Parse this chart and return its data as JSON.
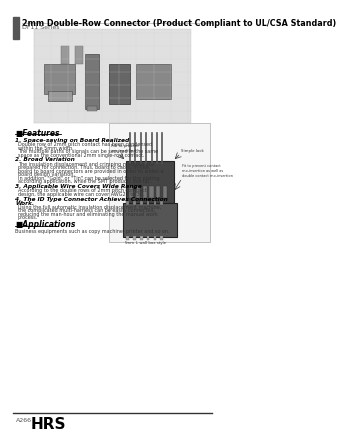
{
  "title": "2mm Double-Row Connector (Product Compliant to UL/CSA Standard)",
  "series": "DF11 Series",
  "features_title": "■Features",
  "features": [
    {
      "heading": "1. Space-saving on Board Realized",
      "text": "Double row of 2mm pitch contact has been condensed\nwithin the 5mm width.\nThe multiple paths of signals can be secured in the same\nspace as the conventional 2mm single-row contact."
    },
    {
      "heading": "2. Broad Variation",
      "text": "The insulation displacement and crimping methods are\nprepared for connection. Thus, board to cable, In-line,\nboard to board connectors are provided in order to widen a\nboard design variation.\nIn addition, \"Gold\" or \"Tin\" can be selected for the plating\naccording application, while the SMT products line up."
    },
    {
      "heading": "3. Applicable Wire Covers Wide Range",
      "text": "According to the double rows of 2mm pitch compact\ndesign, the applicable wire can cover AWG22 to 30."
    },
    {
      "heading": "4. The ID Type Connector Achieves Connection\nWork.",
      "text": "Using the full automatic insulation displacement machine,\nthe complicated multi-harness can be easily connected,\nreducing the man-hour and eliminating the manual work\nprocess."
    }
  ],
  "applications_title": "■Applications",
  "applications_text": "Business equipments such as copy machine, printer and so on.",
  "footer_left": "A266",
  "footer_logo": "HRS",
  "bg_color": "#ffffff",
  "header_bar_color": "#555555",
  "title_underline_color": "#000000",
  "features_underline_color": "#000000",
  "heading_color": "#000000",
  "text_color": "#333333",
  "diagram_labels": [
    "Rib to prevent\nmo-insertion",
    "Simple lock",
    "Fit to prevent contact\nmo-insertion as well as\ndouble contact mo-insertion",
    "5mm",
    "L wall box style"
  ]
}
